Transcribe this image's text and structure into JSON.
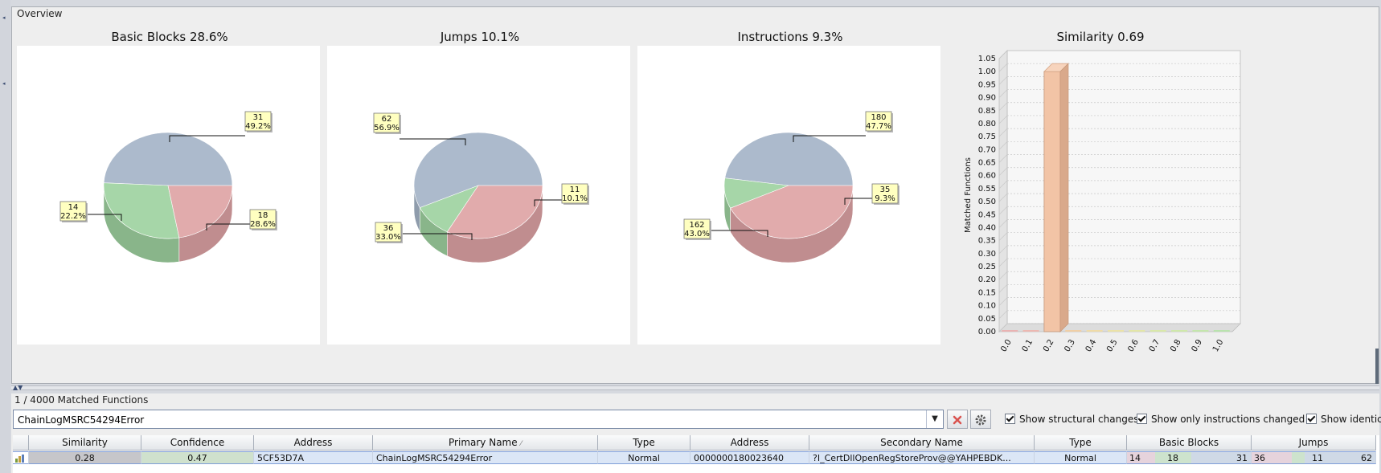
{
  "overview": {
    "title": "Overview",
    "charts": [
      {
        "title": "Basic Blocks 28.6%",
        "callouts": [
          {
            "count": "31",
            "pct": "49.2%"
          },
          {
            "count": "14",
            "pct": "22.2%"
          },
          {
            "count": "18",
            "pct": "28.6%"
          }
        ]
      },
      {
        "title": "Jumps 10.1%",
        "callouts": [
          {
            "count": "62",
            "pct": "56.9%"
          },
          {
            "count": "11",
            "pct": "10.1%"
          },
          {
            "count": "36",
            "pct": "33.0%"
          }
        ]
      },
      {
        "title": "Instructions 9.3%",
        "callouts": [
          {
            "count": "180",
            "pct": "47.7%"
          },
          {
            "count": "35",
            "pct": "9.3%"
          },
          {
            "count": "162",
            "pct": "43.0%"
          }
        ]
      },
      {
        "title": "Similarity 0.69"
      }
    ]
  },
  "chart_data": [
    {
      "type": "pie",
      "title": "Basic Blocks 28.6%",
      "slices": [
        {
          "value": 31,
          "percent": 49.2,
          "color": "#a6b5c8"
        },
        {
          "value": 18,
          "percent": 28.6,
          "color": "#9fd3a1"
        },
        {
          "value": 14,
          "percent": 22.2,
          "color": "#dfa4a6"
        }
      ]
    },
    {
      "type": "pie",
      "title": "Jumps 10.1%",
      "slices": [
        {
          "value": 62,
          "percent": 56.9,
          "color": "#a6b5c8"
        },
        {
          "value": 11,
          "percent": 10.1,
          "color": "#9fd3a1"
        },
        {
          "value": 36,
          "percent": 33.0,
          "color": "#dfa4a6"
        }
      ]
    },
    {
      "type": "pie",
      "title": "Instructions 9.3%",
      "slices": [
        {
          "value": 180,
          "percent": 47.7,
          "color": "#a6b5c8"
        },
        {
          "value": 35,
          "percent": 9.3,
          "color": "#9fd3a1"
        },
        {
          "value": 162,
          "percent": 43.0,
          "color": "#dfa4a6"
        }
      ]
    },
    {
      "type": "bar",
      "title": "Similarity 0.69",
      "categories": [
        "0.0",
        "0.1",
        "0.2",
        "0.3",
        "0.4",
        "0.5",
        "0.6",
        "0.7",
        "0.8",
        "0.9",
        "1.0"
      ],
      "values": [
        0,
        0,
        1,
        0,
        0,
        0,
        0,
        0,
        0,
        0,
        0
      ],
      "ylabel": "Matched Functions",
      "ylim": [
        0,
        1.05
      ],
      "yticks": [
        "0.00",
        "0.05",
        "0.10",
        "0.15",
        "0.20",
        "0.25",
        "0.30",
        "0.35",
        "0.40",
        "0.45",
        "0.50",
        "0.55",
        "0.60",
        "0.65",
        "0.70",
        "0.75",
        "0.80",
        "0.85",
        "0.90",
        "0.95",
        "1.00",
        "1.05"
      ],
      "bar_color": "#f2c4a6"
    }
  ],
  "matched": {
    "title": "1 / 4000 Matched Functions",
    "filter_value": "ChainLogMSRC54294Error",
    "checkboxes": [
      {
        "label": "Show structural changes",
        "checked": true
      },
      {
        "label": "Show only instructions changed",
        "checked": true
      },
      {
        "label": "Show identical",
        "checked": true
      }
    ],
    "columns": [
      "",
      "Similarity",
      "Confidence",
      "Address",
      "Primary Name",
      "Type",
      "Address",
      "Secondary Name",
      "Type",
      "Basic Blocks",
      "Jumps"
    ],
    "row": {
      "similarity": "0.28",
      "confidence": "0.47",
      "primary_address": "5CF53D7A",
      "primary_name": "ChainLogMSRC54294Error",
      "primary_type": "Normal",
      "secondary_address": "0000000180023640",
      "secondary_name": "?I_CertDllOpenRegStoreProv@@YAHPEBDK...",
      "secondary_type": "Normal",
      "basic_blocks": [
        "14",
        "18",
        "31"
      ],
      "jumps": [
        "36",
        "11",
        "62"
      ]
    }
  }
}
